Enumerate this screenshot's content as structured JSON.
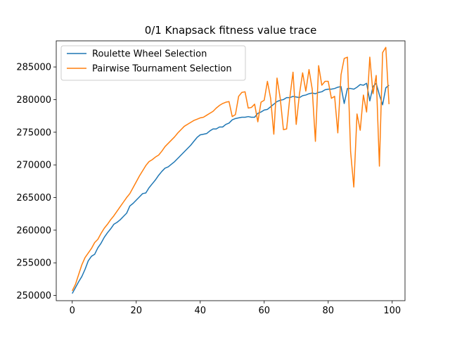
{
  "chart_data": {
    "type": "line",
    "title": "0/1 Knapsack fitness value trace",
    "xlabel": "",
    "ylabel": "",
    "xlim": [
      -5,
      104
    ],
    "ylim": [
      249200,
      289000
    ],
    "x_ticks": [
      0,
      20,
      40,
      60,
      80,
      100
    ],
    "x_tick_labels": [
      "0",
      "20",
      "40",
      "60",
      "80",
      "100"
    ],
    "y_ticks": [
      250000,
      255000,
      260000,
      265000,
      270000,
      275000,
      280000,
      285000
    ],
    "y_tick_labels": [
      "250000",
      "255000",
      "260000",
      "265000",
      "270000",
      "275000",
      "280000",
      "285000"
    ],
    "grid": false,
    "legend_position": "top-left",
    "x": [
      0,
      1,
      2,
      3,
      4,
      5,
      6,
      7,
      8,
      9,
      10,
      11,
      12,
      13,
      14,
      15,
      16,
      17,
      18,
      19,
      20,
      21,
      22,
      23,
      24,
      25,
      26,
      27,
      28,
      29,
      30,
      31,
      32,
      33,
      34,
      35,
      36,
      37,
      38,
      39,
      40,
      41,
      42,
      43,
      44,
      45,
      46,
      47,
      48,
      49,
      50,
      51,
      52,
      53,
      54,
      55,
      56,
      57,
      58,
      59,
      60,
      61,
      62,
      63,
      64,
      65,
      66,
      67,
      68,
      69,
      70,
      71,
      72,
      73,
      74,
      75,
      76,
      77,
      78,
      79,
      80,
      81,
      82,
      83,
      84,
      85,
      86,
      87,
      88,
      89,
      90,
      91,
      92,
      93,
      94,
      95,
      96,
      97,
      98,
      99
    ],
    "series": [
      {
        "name": "Roulette Wheel Selection",
        "color": "#1f77b4",
        "values": [
          250300,
          251200,
          252100,
          252900,
          254000,
          255300,
          256000,
          256300,
          257300,
          258000,
          258900,
          259600,
          260200,
          260900,
          261200,
          261600,
          262100,
          262600,
          263700,
          264100,
          264600,
          265100,
          265600,
          265700,
          266500,
          267100,
          267700,
          268400,
          269000,
          269500,
          269700,
          270100,
          270500,
          271000,
          271500,
          272000,
          272500,
          273000,
          273600,
          274200,
          274600,
          274700,
          274800,
          275200,
          275500,
          275500,
          275800,
          275800,
          276200,
          276400,
          276900,
          277100,
          277200,
          277300,
          277300,
          277400,
          277300,
          277300,
          277900,
          278100,
          278400,
          278500,
          278900,
          279300,
          279700,
          279900,
          280000,
          280300,
          280300,
          280500,
          280400,
          280300,
          280600,
          280700,
          280900,
          281000,
          280900,
          281100,
          281200,
          281500,
          281600,
          281600,
          281700,
          281900,
          282000,
          279400,
          281700,
          281700,
          281600,
          281900,
          282300,
          282200,
          282500,
          279800,
          282000,
          282500,
          280700,
          279200,
          281800,
          282200
        ]
      },
      {
        "name": "Pairwise Tournament Selection",
        "color": "#ff7f0e",
        "values": [
          250700,
          251700,
          253200,
          254700,
          255800,
          256500,
          257200,
          258100,
          258600,
          259500,
          260300,
          260900,
          261600,
          262200,
          262900,
          263600,
          264300,
          265000,
          265600,
          266500,
          267400,
          268300,
          269100,
          269900,
          270500,
          270800,
          271200,
          271500,
          272100,
          272800,
          273300,
          273800,
          274300,
          274900,
          275400,
          275900,
          276200,
          276500,
          276800,
          277000,
          277200,
          277300,
          277600,
          277900,
          278200,
          278700,
          279100,
          279400,
          279600,
          279700,
          277400,
          277700,
          280500,
          281100,
          281200,
          278700,
          278800,
          279300,
          276600,
          279600,
          279900,
          282800,
          280200,
          274700,
          283300,
          280200,
          275400,
          275500,
          280300,
          284200,
          276200,
          280800,
          284100,
          281300,
          284600,
          281600,
          273600,
          285200,
          282200,
          282800,
          282800,
          280200,
          280500,
          274900,
          283800,
          286300,
          286500,
          272000,
          266600,
          277800,
          275300,
          280700,
          278100,
          286500,
          280900,
          283700,
          269800,
          287200,
          288000,
          279300
        ]
      }
    ]
  }
}
